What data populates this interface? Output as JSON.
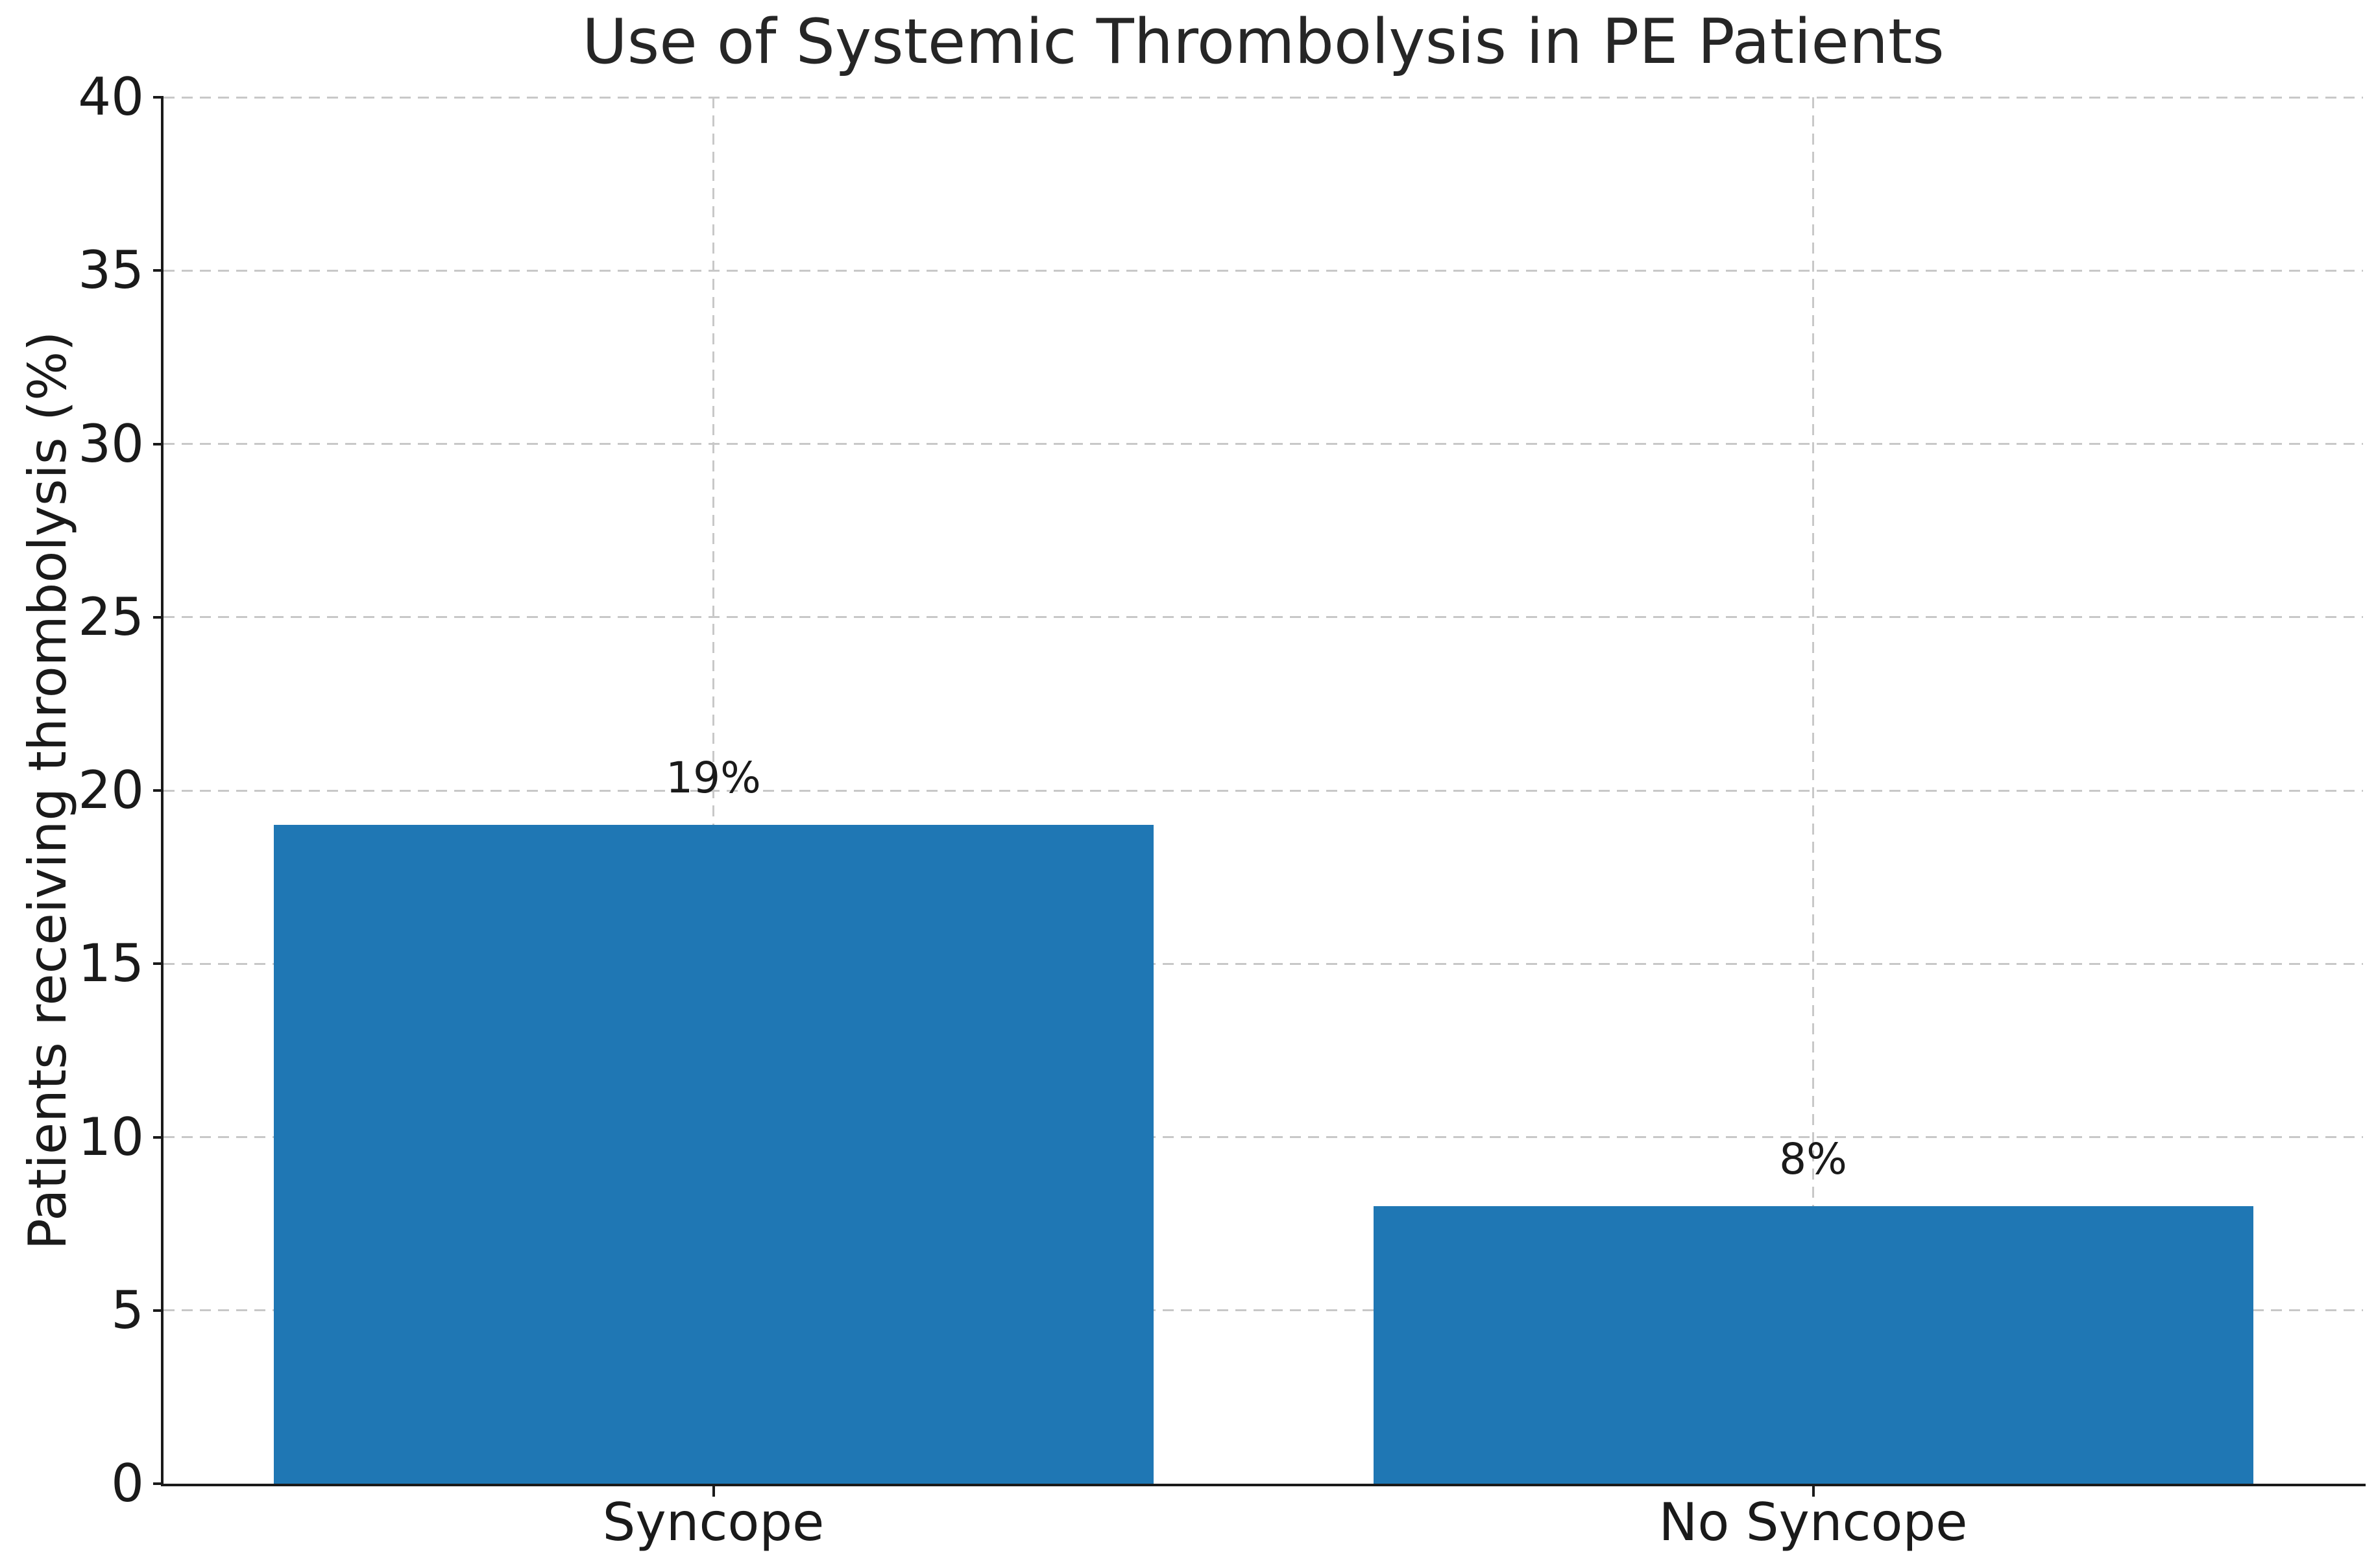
{
  "chart_data": {
    "type": "bar",
    "title": "Use of Systemic Thrombolysis in PE Patients",
    "xlabel": "",
    "ylabel": "Patients receiving thrombolysis (%)",
    "categories": [
      "Syncope",
      "No Syncope"
    ],
    "values": [
      19,
      8
    ],
    "bar_value_labels": [
      "19%",
      "8%"
    ],
    "ylim": [
      0,
      40
    ],
    "ytick_values": [
      0,
      5,
      10,
      15,
      20,
      25,
      30,
      35,
      40
    ],
    "ytick_labels": [
      "0",
      "5",
      "10",
      "15",
      "20",
      "25",
      "30",
      "35",
      "40"
    ],
    "grid": {
      "visible": true,
      "style": "dashed",
      "horizontal": true,
      "vertical_at_categories": true
    },
    "legend_position": "none",
    "bar_width_fraction": 0.8,
    "colors": {
      "bar": "#1f77b4",
      "grid": "#c8c8c8",
      "spine": "#1a1a1a",
      "text": "#1a1a1a",
      "background": "#ffffff"
    }
  }
}
